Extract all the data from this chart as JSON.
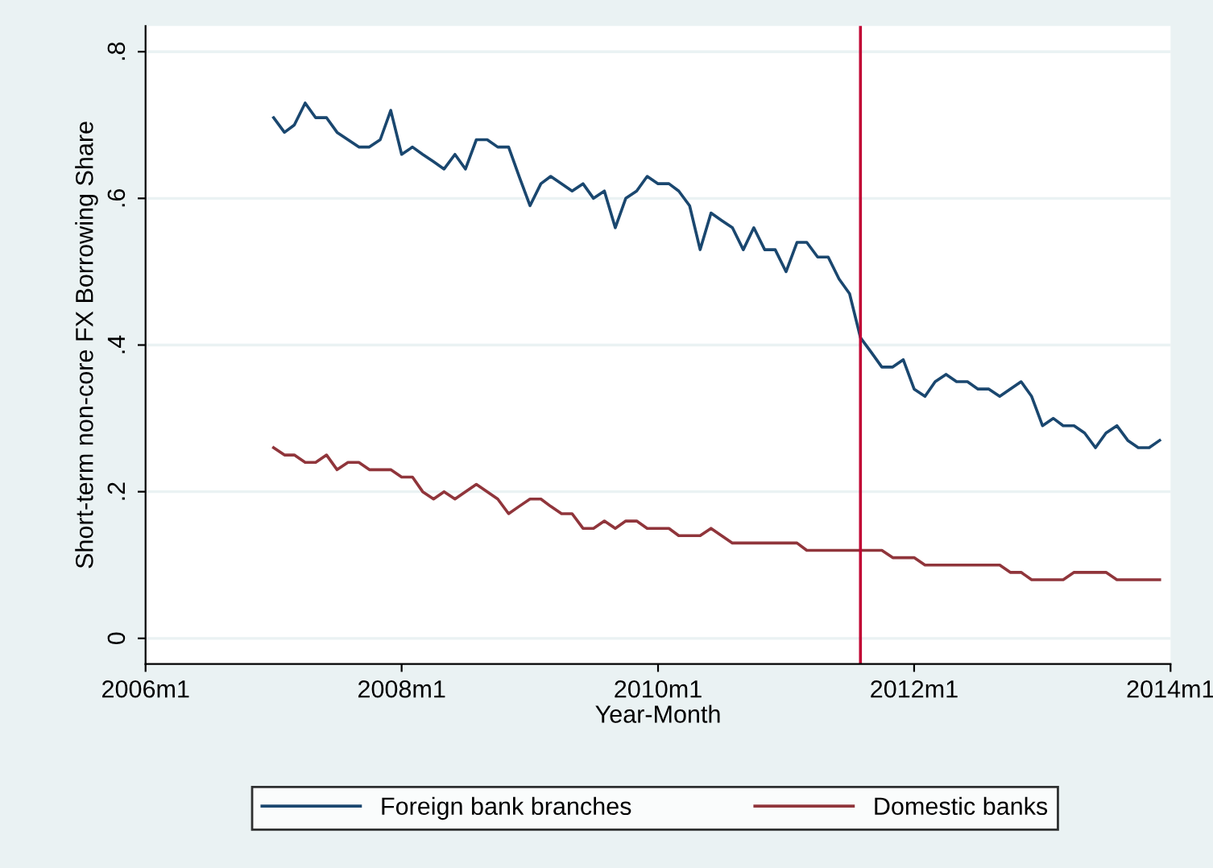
{
  "chart_data": {
    "type": "line",
    "xlabel": "Year-Month",
    "ylabel": "Short-term non-core FX Borrowing Share",
    "x": [
      "2007-01",
      "2007-02",
      "2007-03",
      "2007-04",
      "2007-05",
      "2007-06",
      "2007-07",
      "2007-08",
      "2007-09",
      "2007-10",
      "2007-11",
      "2007-12",
      "2008-01",
      "2008-02",
      "2008-03",
      "2008-04",
      "2008-05",
      "2008-06",
      "2008-07",
      "2008-08",
      "2008-09",
      "2008-10",
      "2008-11",
      "2008-12",
      "2009-01",
      "2009-02",
      "2009-03",
      "2009-04",
      "2009-05",
      "2009-06",
      "2009-07",
      "2009-08",
      "2009-09",
      "2009-10",
      "2009-11",
      "2009-12",
      "2010-01",
      "2010-02",
      "2010-03",
      "2010-04",
      "2010-05",
      "2010-06",
      "2010-07",
      "2010-08",
      "2010-09",
      "2010-10",
      "2010-11",
      "2010-12",
      "2011-01",
      "2011-02",
      "2011-03",
      "2011-04",
      "2011-05",
      "2011-06",
      "2011-07",
      "2011-08",
      "2011-09",
      "2011-10",
      "2011-11",
      "2011-12",
      "2012-01",
      "2012-02",
      "2012-03",
      "2012-04",
      "2012-05",
      "2012-06",
      "2012-07",
      "2012-08",
      "2012-09",
      "2012-10",
      "2012-11",
      "2012-12",
      "2013-01",
      "2013-02",
      "2013-03",
      "2013-04",
      "2013-05",
      "2013-06",
      "2013-07",
      "2013-08",
      "2013-09",
      "2013-10",
      "2013-11",
      "2013-12"
    ],
    "series": [
      {
        "name": "Foreign bank branches",
        "color": "#1a476f",
        "values": [
          0.71,
          0.69,
          0.7,
          0.73,
          0.71,
          0.71,
          0.69,
          0.68,
          0.67,
          0.67,
          0.68,
          0.72,
          0.66,
          0.67,
          0.66,
          0.65,
          0.64,
          0.66,
          0.64,
          0.68,
          0.68,
          0.67,
          0.67,
          0.63,
          0.59,
          0.62,
          0.63,
          0.62,
          0.61,
          0.62,
          0.6,
          0.61,
          0.56,
          0.6,
          0.61,
          0.63,
          0.62,
          0.62,
          0.61,
          0.59,
          0.53,
          0.58,
          0.57,
          0.56,
          0.53,
          0.56,
          0.53,
          0.53,
          0.5,
          0.54,
          0.54,
          0.52,
          0.52,
          0.49,
          0.47,
          0.41,
          0.39,
          0.37,
          0.37,
          0.38,
          0.34,
          0.33,
          0.35,
          0.36,
          0.35,
          0.35,
          0.34,
          0.34,
          0.33,
          0.34,
          0.35,
          0.33,
          0.29,
          0.3,
          0.29,
          0.29,
          0.28,
          0.26,
          0.28,
          0.29,
          0.27,
          0.26,
          0.26,
          0.27
        ]
      },
      {
        "name": "Domestic banks",
        "color": "#90353b",
        "values": [
          0.26,
          0.25,
          0.25,
          0.24,
          0.24,
          0.25,
          0.23,
          0.24,
          0.24,
          0.23,
          0.23,
          0.23,
          0.22,
          0.22,
          0.2,
          0.19,
          0.2,
          0.19,
          0.2,
          0.21,
          0.2,
          0.19,
          0.17,
          0.18,
          0.19,
          0.19,
          0.18,
          0.17,
          0.17,
          0.15,
          0.15,
          0.16,
          0.15,
          0.16,
          0.16,
          0.15,
          0.15,
          0.15,
          0.14,
          0.14,
          0.14,
          0.15,
          0.14,
          0.13,
          0.13,
          0.13,
          0.13,
          0.13,
          0.13,
          0.13,
          0.12,
          0.12,
          0.12,
          0.12,
          0.12,
          0.12,
          0.12,
          0.12,
          0.11,
          0.11,
          0.11,
          0.1,
          0.1,
          0.1,
          0.1,
          0.1,
          0.1,
          0.1,
          0.1,
          0.09,
          0.09,
          0.08,
          0.08,
          0.08,
          0.08,
          0.09,
          0.09,
          0.09,
          0.09,
          0.08,
          0.08,
          0.08,
          0.08,
          0.08
        ]
      }
    ],
    "xlim": [
      "2006-01",
      "2014-01"
    ],
    "xticks": [
      {
        "value": "2006-01",
        "label": "2006m1"
      },
      {
        "value": "2008-01",
        "label": "2008m1"
      },
      {
        "value": "2010-01",
        "label": "2010m1"
      },
      {
        "value": "2012-01",
        "label": "2012m1"
      },
      {
        "value": "2014-01",
        "label": "2014m1"
      }
    ],
    "ylim": [
      -0.035,
      0.835
    ],
    "yticks": [
      0,
      {
        "value": 0.2,
        "label": ".2"
      },
      {
        "value": 0.4,
        "label": ".4"
      },
      {
        "value": 0.6,
        "label": ".6"
      },
      {
        "value": 0.8,
        "label": ".8"
      }
    ],
    "ref_lines": [
      {
        "axis": "x",
        "value": "2011-08",
        "color": "#c10534"
      }
    ],
    "grid": "y",
    "legend": "bottom",
    "marker": "none",
    "line_style": "solid"
  }
}
